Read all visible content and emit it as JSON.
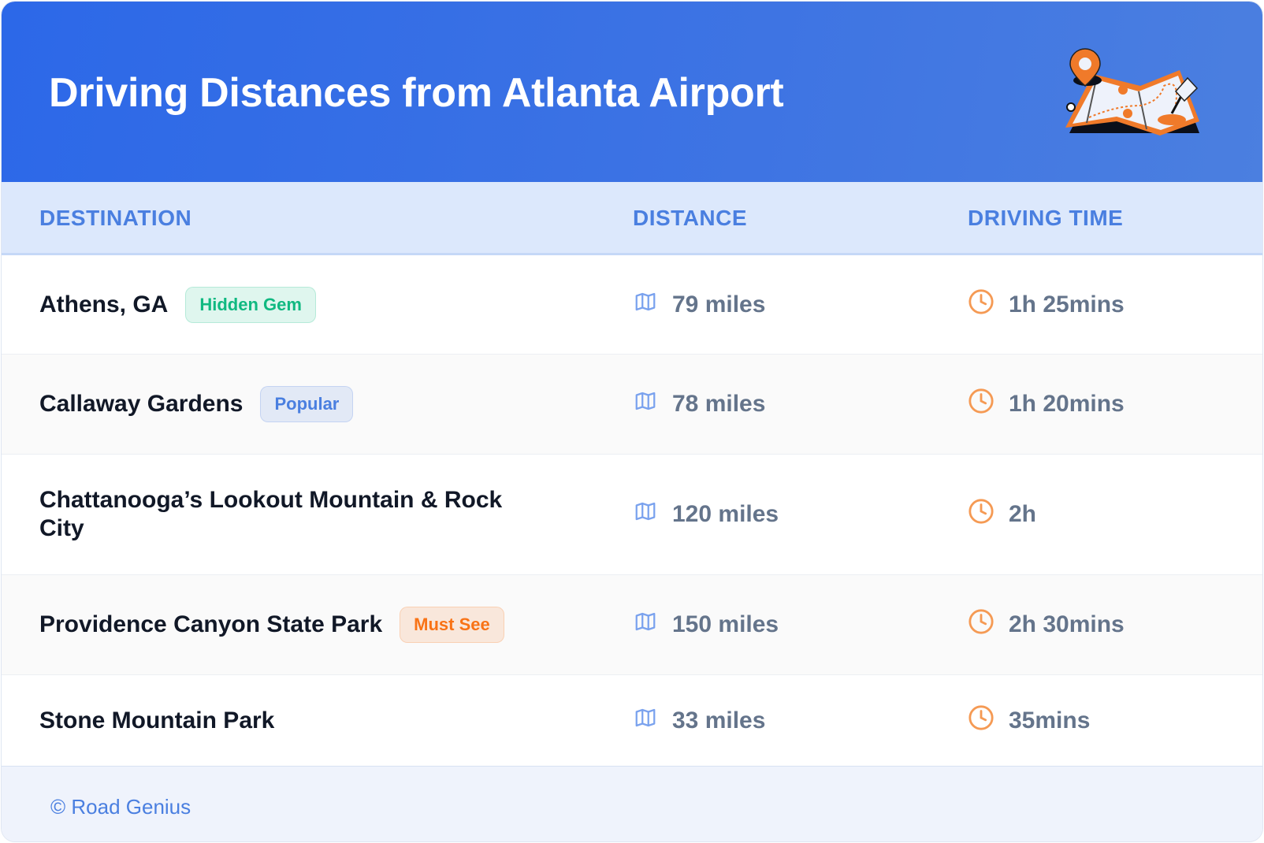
{
  "title": "Driving Distances from Atlanta Airport",
  "illustration": "map-with-pin-icon",
  "columns": {
    "destination": "DESTINATION",
    "distance": "DISTANCE",
    "time": "DRIVING TIME"
  },
  "rows": [
    {
      "destination": "Athens, GA",
      "badge": "Hidden Gem",
      "badge_color": "#10b981",
      "distance": "79 miles",
      "time": "1h 25mins"
    },
    {
      "destination": "Callaway Gardens",
      "badge": "Popular",
      "badge_color": "#4a7fe0",
      "distance": "78 miles",
      "time": "1h 20mins"
    },
    {
      "destination": "Chattanooga’s Lookout Mountain & Rock City",
      "badge": null,
      "distance": "120 miles",
      "time": "2h"
    },
    {
      "destination": "Providence Canyon State Park",
      "badge": "Must See",
      "badge_color": "#f97316",
      "distance": "150 miles",
      "time": "2h 30mins"
    },
    {
      "destination": "Stone Mountain Park",
      "badge": null,
      "distance": "33 miles",
      "time": "35mins"
    }
  ],
  "footer": "© Road Genius",
  "colors": {
    "header": "#2c68e8",
    "distance_icon": "#7aa2ee",
    "time_icon": "#f59a54"
  }
}
